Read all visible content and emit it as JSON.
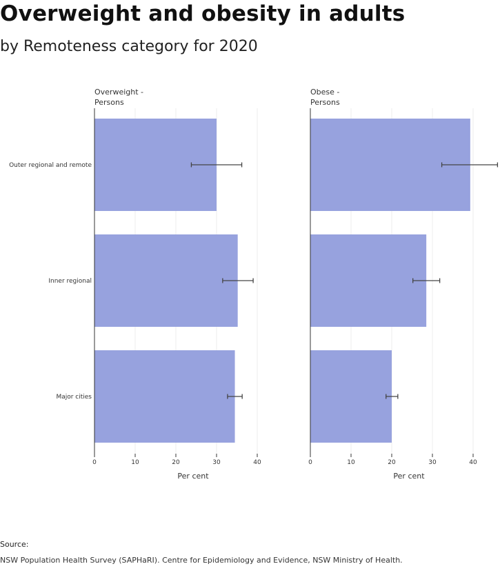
{
  "header": {
    "title": "Overweight and obesity in adults",
    "subtitle": "by Remoteness category for 2020"
  },
  "chart_data": {
    "type": "bar",
    "orientation": "horizontal",
    "categories": [
      "Outer regional and remote",
      "Inner regional",
      "Major cities"
    ],
    "xlabel": "Per cent",
    "xlim": [
      0,
      46
    ],
    "xticks": [
      0,
      10,
      20,
      30,
      40
    ],
    "grid": true,
    "bar_color": "#97a2de",
    "panels": [
      {
        "title_lines": [
          "Overweight -",
          "Persons"
        ],
        "values": [
          30.0,
          35.2,
          34.5
        ],
        "ci_low": [
          23.8,
          31.5,
          32.7
        ],
        "ci_high": [
          36.2,
          39.0,
          36.3
        ]
      },
      {
        "title_lines": [
          "Obese -",
          "Persons"
        ],
        "values": [
          39.3,
          28.5,
          20.0
        ],
        "ci_low": [
          32.3,
          25.2,
          18.6
        ],
        "ci_high": [
          46.0,
          31.8,
          21.5
        ]
      }
    ]
  },
  "source": {
    "label": "Source:",
    "text": "NSW Population Health Survey (SAPHaRI). Centre for Epidemiology and Evidence, NSW Ministry of Health."
  }
}
